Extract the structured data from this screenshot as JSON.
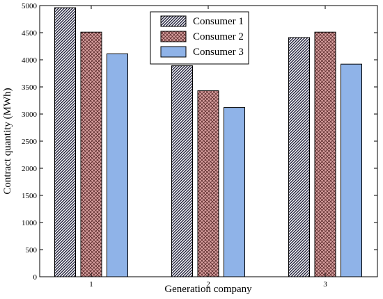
{
  "chart_data": {
    "type": "bar",
    "title": "",
    "xlabel": "Generation company",
    "ylabel": "Contract quantity (MWh)",
    "categories": [
      "1",
      "2",
      "3"
    ],
    "ylim": [
      0,
      5000
    ],
    "yticks": [
      0,
      500,
      1000,
      1500,
      2000,
      2500,
      3000,
      3500,
      4000,
      4500,
      5000
    ],
    "grid": false,
    "legend_position": "top-center",
    "series": [
      {
        "name": "Consumer 1",
        "values": [
          4960,
          3890,
          4410
        ],
        "fill": "#1f1f3a",
        "pattern": "diagonal-hatch"
      },
      {
        "name": "Consumer 2",
        "values": [
          4510,
          3430,
          4510
        ],
        "fill": "#d9a0a0",
        "pattern": "crosshatch"
      },
      {
        "name": "Consumer 3",
        "values": [
          4110,
          3120,
          3920
        ],
        "fill": "#8fb3e8",
        "pattern": "solid"
      }
    ]
  }
}
